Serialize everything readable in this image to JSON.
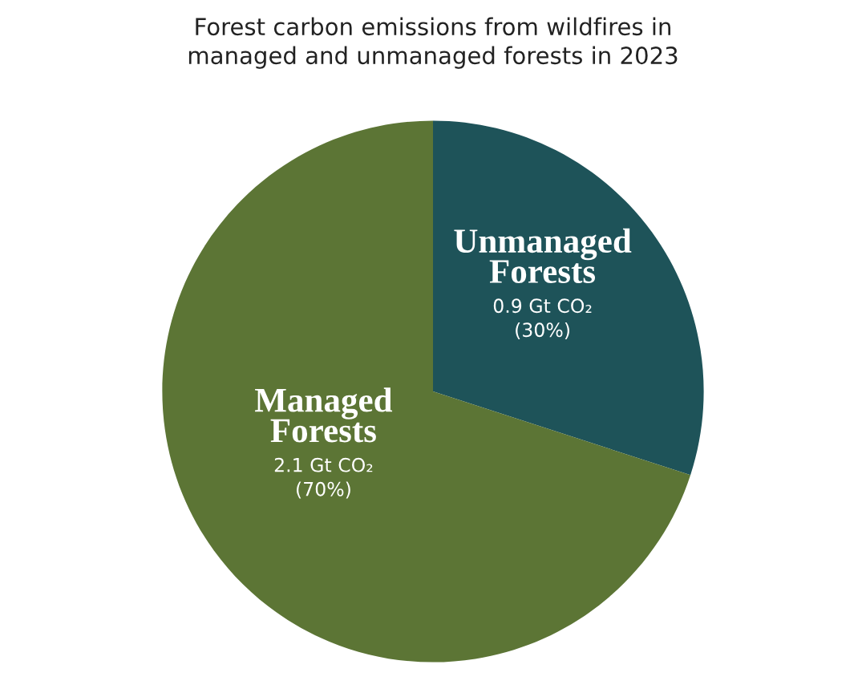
{
  "chart_data": {
    "type": "pie",
    "title": "Forest carbon emissions from wildfires in\nmanaged and unmanaged forests in 2023",
    "categories": [
      "Unmanaged\nForests",
      "Managed\nForests"
    ],
    "values": [
      0.9,
      2.1
    ],
    "colors": [
      "#1e5359",
      "#5c7535"
    ],
    "value_labels": [
      "0.9 Gt CO₂\n(30%)",
      "2.1 Gt CO₂\n(70%)"
    ],
    "legend": false
  }
}
